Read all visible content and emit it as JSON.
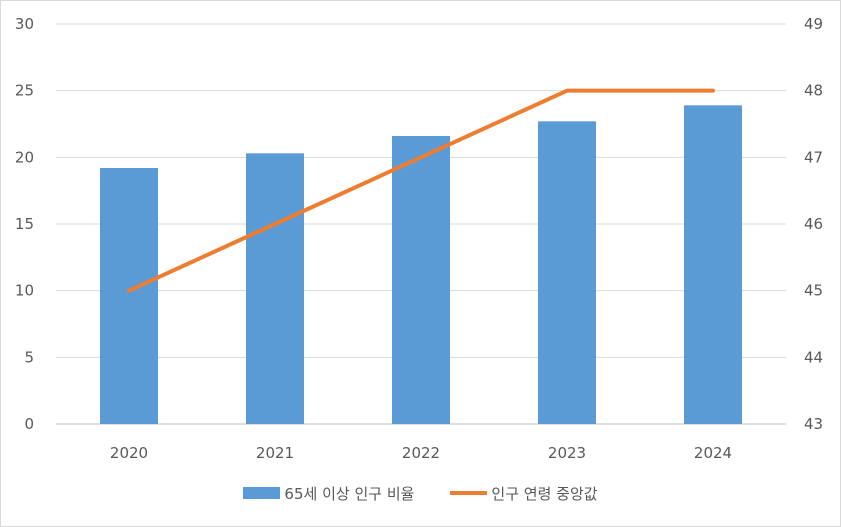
{
  "chart_data": {
    "type": "bar+line",
    "categories": [
      "2020",
      "2021",
      "2022",
      "2023",
      "2024"
    ],
    "series": [
      {
        "name": "65세 이상 인구 비율",
        "type": "bar",
        "axis": "left",
        "values": [
          19.2,
          20.3,
          21.6,
          22.7,
          23.9
        ],
        "color": "#5B9BD5"
      },
      {
        "name": "인구 연령 중앙값",
        "type": "line",
        "axis": "right",
        "values": [
          45,
          46,
          47,
          48,
          48
        ],
        "color": "#ED7D31"
      }
    ],
    "y_left": {
      "ylim": [
        0,
        30
      ],
      "ticks": [
        "0",
        "5",
        "10",
        "15",
        "20",
        "25",
        "30"
      ]
    },
    "y_right": {
      "ylim": [
        43,
        49
      ],
      "ticks": [
        "43",
        "44",
        "45",
        "46",
        "47",
        "48",
        "49"
      ]
    },
    "grid": true,
    "legend_position": "bottom"
  }
}
